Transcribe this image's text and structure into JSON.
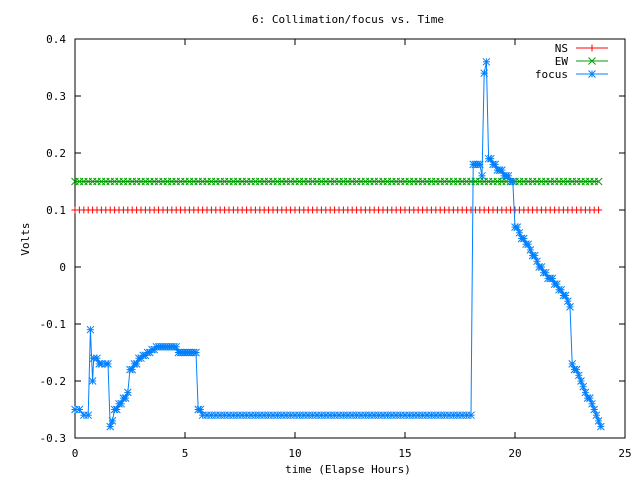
{
  "chart_data": {
    "type": "line",
    "title": "6: Collimation/focus vs. Time",
    "xlabel": "time (Elapse Hours)",
    "ylabel": "Volts",
    "xlim": [
      0,
      25
    ],
    "ylim": [
      -0.3,
      0.4
    ],
    "xticks": [
      0,
      5,
      10,
      15,
      20,
      25
    ],
    "yticks": [
      -0.3,
      -0.2,
      -0.1,
      0,
      0.1,
      0.2,
      0.3,
      0.4
    ],
    "xtick_labels": [
      "0",
      "5",
      "10",
      "15",
      "20",
      "25"
    ],
    "ytick_labels": [
      "-0.3",
      "-0.2",
      "-0.1",
      "0",
      "0.1",
      "0.2",
      "0.3",
      "0.4"
    ],
    "grid": false,
    "legend_position": "top-right",
    "series": [
      {
        "name": "NS",
        "color": "#ff0000",
        "marker": "plus",
        "x": [
          0,
          0.2,
          0.4,
          0.6,
          0.8,
          1.0,
          1.2,
          1.4,
          1.6,
          1.8,
          2.0,
          2.2,
          2.4,
          2.6,
          2.8,
          3.0,
          3.2,
          3.4,
          3.6,
          3.8,
          4.0,
          4.2,
          4.4,
          4.6,
          4.8,
          5.0,
          5.2,
          5.4,
          5.6,
          5.8,
          6.0,
          6.2,
          6.4,
          6.6,
          6.8,
          7.0,
          7.2,
          7.4,
          7.6,
          7.8,
          8.0,
          8.2,
          8.4,
          8.6,
          8.8,
          9.0,
          9.2,
          9.4,
          9.6,
          9.8,
          10.0,
          10.2,
          10.4,
          10.6,
          10.8,
          11.0,
          11.2,
          11.4,
          11.6,
          11.8,
          12.0,
          12.2,
          12.4,
          12.6,
          12.8,
          13.0,
          13.2,
          13.4,
          13.6,
          13.8,
          14.0,
          14.2,
          14.4,
          14.6,
          14.8,
          15.0,
          15.2,
          15.4,
          15.6,
          15.8,
          16.0,
          16.2,
          16.4,
          16.6,
          16.8,
          17.0,
          17.2,
          17.4,
          17.6,
          17.8,
          18.0,
          18.2,
          18.4,
          18.6,
          18.8,
          19.0,
          19.2,
          19.4,
          19.6,
          19.8,
          20.0,
          20.2,
          20.4,
          20.6,
          20.8,
          21.0,
          21.2,
          21.4,
          21.6,
          21.8,
          22.0,
          22.2,
          22.4,
          22.6,
          22.8,
          23.0,
          23.2,
          23.4,
          23.6,
          23.8
        ],
        "y_constant": 0.1
      },
      {
        "name": "EW",
        "color": "#00a000",
        "marker": "cross",
        "x": [
          0,
          0.2,
          0.4,
          0.6,
          0.8,
          1.0,
          1.2,
          1.4,
          1.6,
          1.8,
          2.0,
          2.2,
          2.4,
          2.6,
          2.8,
          3.0,
          3.2,
          3.4,
          3.6,
          3.8,
          4.0,
          4.2,
          4.4,
          4.6,
          4.8,
          5.0,
          5.2,
          5.4,
          5.6,
          5.8,
          6.0,
          6.2,
          6.4,
          6.6,
          6.8,
          7.0,
          7.2,
          7.4,
          7.6,
          7.8,
          8.0,
          8.2,
          8.4,
          8.6,
          8.8,
          9.0,
          9.2,
          9.4,
          9.6,
          9.8,
          10.0,
          10.2,
          10.4,
          10.6,
          10.8,
          11.0,
          11.2,
          11.4,
          11.6,
          11.8,
          12.0,
          12.2,
          12.4,
          12.6,
          12.8,
          13.0,
          13.2,
          13.4,
          13.6,
          13.8,
          14.0,
          14.2,
          14.4,
          14.6,
          14.8,
          15.0,
          15.2,
          15.4,
          15.6,
          15.8,
          16.0,
          16.2,
          16.4,
          16.6,
          16.8,
          17.0,
          17.2,
          17.4,
          17.6,
          17.8,
          18.0,
          18.2,
          18.4,
          18.6,
          18.8,
          19.0,
          19.2,
          19.4,
          19.6,
          19.8,
          20.0,
          20.2,
          20.4,
          20.6,
          20.8,
          21.0,
          21.2,
          21.4,
          21.6,
          21.8,
          22.0,
          22.2,
          22.4,
          22.6,
          22.8,
          23.0,
          23.2,
          23.4,
          23.6,
          23.8
        ],
        "y_constant": 0.15
      },
      {
        "name": "focus",
        "color": "#0080ff",
        "marker": "star",
        "points": [
          [
            0.0,
            -0.25
          ],
          [
            0.2,
            -0.25
          ],
          [
            0.4,
            -0.26
          ],
          [
            0.6,
            -0.26
          ],
          [
            0.7,
            -0.11
          ],
          [
            0.8,
            -0.2
          ],
          [
            0.85,
            -0.16
          ],
          [
            1.0,
            -0.16
          ],
          [
            1.1,
            -0.17
          ],
          [
            1.2,
            -0.17
          ],
          [
            1.4,
            -0.17
          ],
          [
            1.5,
            -0.17
          ],
          [
            1.6,
            -0.28
          ],
          [
            1.7,
            -0.27
          ],
          [
            1.8,
            -0.25
          ],
          [
            1.9,
            -0.25
          ],
          [
            2.0,
            -0.24
          ],
          [
            2.1,
            -0.24
          ],
          [
            2.2,
            -0.23
          ],
          [
            2.3,
            -0.23
          ],
          [
            2.4,
            -0.22
          ],
          [
            2.5,
            -0.18
          ],
          [
            2.6,
            -0.18
          ],
          [
            2.7,
            -0.17
          ],
          [
            2.8,
            -0.17
          ],
          [
            2.9,
            -0.16
          ],
          [
            3.0,
            -0.16
          ],
          [
            3.1,
            -0.155
          ],
          [
            3.2,
            -0.155
          ],
          [
            3.3,
            -0.15
          ],
          [
            3.4,
            -0.15
          ],
          [
            3.5,
            -0.145
          ],
          [
            3.6,
            -0.145
          ],
          [
            3.7,
            -0.14
          ],
          [
            3.8,
            -0.14
          ],
          [
            3.9,
            -0.14
          ],
          [
            4.0,
            -0.14
          ],
          [
            4.1,
            -0.14
          ],
          [
            4.2,
            -0.14
          ],
          [
            4.3,
            -0.14
          ],
          [
            4.4,
            -0.14
          ],
          [
            4.5,
            -0.14
          ],
          [
            4.6,
            -0.14
          ],
          [
            4.7,
            -0.15
          ],
          [
            4.8,
            -0.15
          ],
          [
            4.9,
            -0.15
          ],
          [
            5.0,
            -0.15
          ],
          [
            5.1,
            -0.15
          ],
          [
            5.2,
            -0.15
          ],
          [
            5.3,
            -0.15
          ],
          [
            5.4,
            -0.15
          ],
          [
            5.5,
            -0.15
          ],
          [
            5.6,
            -0.25
          ],
          [
            5.7,
            -0.25
          ],
          [
            5.8,
            -0.26
          ],
          [
            6.0,
            -0.26
          ],
          [
            6.2,
            -0.26
          ],
          [
            6.4,
            -0.26
          ],
          [
            6.6,
            -0.26
          ],
          [
            6.8,
            -0.26
          ],
          [
            7.0,
            -0.26
          ],
          [
            7.2,
            -0.26
          ],
          [
            7.4,
            -0.26
          ],
          [
            7.6,
            -0.26
          ],
          [
            7.8,
            -0.26
          ],
          [
            8.0,
            -0.26
          ],
          [
            8.2,
            -0.26
          ],
          [
            8.4,
            -0.26
          ],
          [
            8.6,
            -0.26
          ],
          [
            8.8,
            -0.26
          ],
          [
            9.0,
            -0.26
          ],
          [
            9.2,
            -0.26
          ],
          [
            9.4,
            -0.26
          ],
          [
            9.6,
            -0.26
          ],
          [
            9.8,
            -0.26
          ],
          [
            10.0,
            -0.26
          ],
          [
            10.2,
            -0.26
          ],
          [
            10.4,
            -0.26
          ],
          [
            10.6,
            -0.26
          ],
          [
            10.8,
            -0.26
          ],
          [
            11.0,
            -0.26
          ],
          [
            11.2,
            -0.26
          ],
          [
            11.4,
            -0.26
          ],
          [
            11.6,
            -0.26
          ],
          [
            11.8,
            -0.26
          ],
          [
            12.0,
            -0.26
          ],
          [
            12.2,
            -0.26
          ],
          [
            12.4,
            -0.26
          ],
          [
            12.6,
            -0.26
          ],
          [
            12.8,
            -0.26
          ],
          [
            13.0,
            -0.26
          ],
          [
            13.2,
            -0.26
          ],
          [
            13.4,
            -0.26
          ],
          [
            13.6,
            -0.26
          ],
          [
            13.8,
            -0.26
          ],
          [
            14.0,
            -0.26
          ],
          [
            14.2,
            -0.26
          ],
          [
            14.4,
            -0.26
          ],
          [
            14.6,
            -0.26
          ],
          [
            14.8,
            -0.26
          ],
          [
            15.0,
            -0.26
          ],
          [
            15.2,
            -0.26
          ],
          [
            15.4,
            -0.26
          ],
          [
            15.6,
            -0.26
          ],
          [
            15.8,
            -0.26
          ],
          [
            16.0,
            -0.26
          ],
          [
            16.2,
            -0.26
          ],
          [
            16.4,
            -0.26
          ],
          [
            16.6,
            -0.26
          ],
          [
            16.8,
            -0.26
          ],
          [
            17.0,
            -0.26
          ],
          [
            17.2,
            -0.26
          ],
          [
            17.4,
            -0.26
          ],
          [
            17.6,
            -0.26
          ],
          [
            17.8,
            -0.26
          ],
          [
            18.0,
            -0.26
          ],
          [
            18.1,
            0.18
          ],
          [
            18.2,
            0.18
          ],
          [
            18.3,
            0.18
          ],
          [
            18.4,
            0.18
          ],
          [
            18.5,
            0.16
          ],
          [
            18.6,
            0.34
          ],
          [
            18.7,
            0.36
          ],
          [
            18.8,
            0.19
          ],
          [
            18.9,
            0.19
          ],
          [
            19.0,
            0.18
          ],
          [
            19.1,
            0.18
          ],
          [
            19.2,
            0.17
          ],
          [
            19.3,
            0.17
          ],
          [
            19.4,
            0.17
          ],
          [
            19.5,
            0.16
          ],
          [
            19.6,
            0.16
          ],
          [
            19.7,
            0.16
          ],
          [
            19.8,
            0.15
          ],
          [
            19.9,
            0.15
          ],
          [
            20.0,
            0.07
          ],
          [
            20.1,
            0.07
          ],
          [
            20.2,
            0.06
          ],
          [
            20.3,
            0.05
          ],
          [
            20.4,
            0.05
          ],
          [
            20.5,
            0.04
          ],
          [
            20.6,
            0.04
          ],
          [
            20.7,
            0.03
          ],
          [
            20.8,
            0.02
          ],
          [
            20.9,
            0.02
          ],
          [
            21.0,
            0.01
          ],
          [
            21.1,
            0.0
          ],
          [
            21.2,
            0.0
          ],
          [
            21.3,
            -0.01
          ],
          [
            21.4,
            -0.01
          ],
          [
            21.5,
            -0.02
          ],
          [
            21.6,
            -0.02
          ],
          [
            21.7,
            -0.02
          ],
          [
            21.8,
            -0.03
          ],
          [
            21.9,
            -0.03
          ],
          [
            22.0,
            -0.04
          ],
          [
            22.1,
            -0.04
          ],
          [
            22.2,
            -0.05
          ],
          [
            22.3,
            -0.05
          ],
          [
            22.4,
            -0.06
          ],
          [
            22.5,
            -0.07
          ],
          [
            22.6,
            -0.17
          ],
          [
            22.7,
            -0.18
          ],
          [
            22.8,
            -0.18
          ],
          [
            22.9,
            -0.19
          ],
          [
            23.0,
            -0.2
          ],
          [
            23.1,
            -0.21
          ],
          [
            23.2,
            -0.22
          ],
          [
            23.3,
            -0.23
          ],
          [
            23.4,
            -0.23
          ],
          [
            23.5,
            -0.24
          ],
          [
            23.6,
            -0.25
          ],
          [
            23.7,
            -0.26
          ],
          [
            23.8,
            -0.27
          ],
          [
            23.9,
            -0.28
          ]
        ]
      }
    ]
  }
}
